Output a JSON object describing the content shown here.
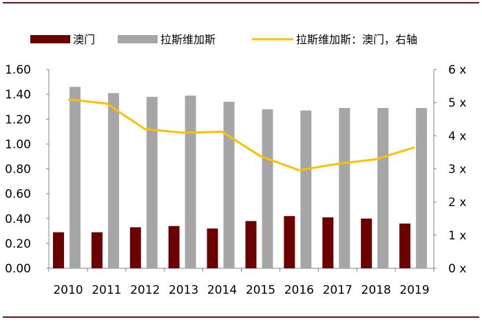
{
  "chart_data": {
    "type": "bar",
    "categories": [
      "2010",
      "2011",
      "2012",
      "2013",
      "2014",
      "2015",
      "2016",
      "2017",
      "2018",
      "2019"
    ],
    "series": [
      {
        "name": "澳门",
        "kind": "bar",
        "axis": "left",
        "color": "#6b0000",
        "values": [
          0.29,
          0.29,
          0.33,
          0.34,
          0.32,
          0.38,
          0.42,
          0.41,
          0.4,
          0.36
        ]
      },
      {
        "name": "拉斯维加斯",
        "kind": "bar",
        "axis": "left",
        "color": "#a6a6a6",
        "values": [
          1.46,
          1.41,
          1.38,
          1.39,
          1.34,
          1.28,
          1.27,
          1.29,
          1.29,
          1.29
        ]
      },
      {
        "name": "拉斯维加斯：澳门，右轴",
        "kind": "line",
        "axis": "right",
        "color": "#ffc000",
        "values": [
          5.1,
          4.97,
          4.2,
          4.09,
          4.12,
          3.38,
          2.96,
          3.15,
          3.29,
          3.65
        ]
      }
    ],
    "left_axis": {
      "min": 0,
      "max": 1.6,
      "ticks": [
        "0.00",
        "0.20",
        "0.40",
        "0.60",
        "0.80",
        "1.00",
        "1.20",
        "1.40",
        "1.60"
      ]
    },
    "right_axis": {
      "min": 0,
      "max": 6,
      "ticks": [
        "0 x",
        "1 x",
        "2 x",
        "3 x",
        "4 x",
        "5 x",
        "6 x"
      ]
    },
    "legend_position": "top",
    "title": "",
    "xlabel": "",
    "ylabel": ""
  }
}
